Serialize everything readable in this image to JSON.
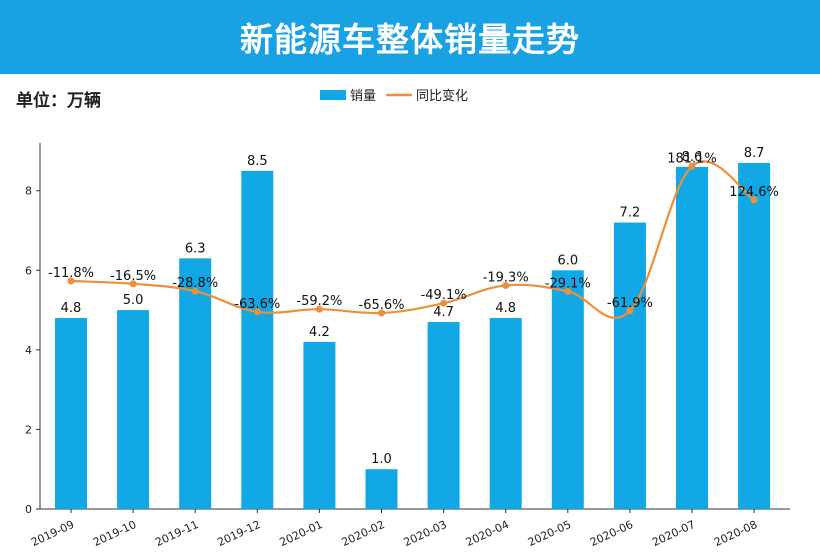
{
  "banner": {
    "title": "新能源车整体销量走势"
  },
  "unit_label": "单位：万辆",
  "colors": {
    "banner": "#18a2e3",
    "bar": "#12a8e6",
    "line": "#ee8f3a"
  },
  "chart_data": {
    "type": "bar",
    "title": "新能源车整体销量走势",
    "xlabel": "",
    "ylabel": "",
    "ylim": [
      0,
      9.2
    ],
    "y_ticks": [
      0,
      2,
      4,
      6,
      8
    ],
    "legend_position": "top-center",
    "grid": false,
    "categories": [
      "2019-09",
      "2019-10",
      "2019-11",
      "2019-12",
      "2020-01",
      "2020-02",
      "2020-03",
      "2020-04",
      "2020-05",
      "2020-06",
      "2020-07",
      "2020-08"
    ],
    "series": [
      {
        "name": "销量",
        "type": "bar",
        "values": [
          4.8,
          5.0,
          6.3,
          8.5,
          4.2,
          1.0,
          4.7,
          4.8,
          6.0,
          7.2,
          8.6,
          8.7
        ],
        "labels": [
          "4.8",
          "5.0",
          "6.3",
          "8.5",
          "4.2",
          "1.0",
          "4.7",
          "4.8",
          "6.0",
          "7.2",
          "8.6",
          "8.7"
        ]
      },
      {
        "name": "同比变化",
        "type": "line",
        "values": [
          -11.8,
          -16.5,
          -28.8,
          -63.6,
          -59.2,
          -65.6,
          -49.1,
          -19.3,
          -29.1,
          -61.9,
          181.1,
          124.6
        ],
        "labels": [
          "-11.8%",
          "-16.5%",
          "-28.8%",
          "-63.6%",
          "-59.2%",
          "-65.6%",
          "-49.1%",
          "-19.3%",
          "-29.1%",
          "-61.9%",
          "181.1%",
          "124.6%"
        ]
      }
    ]
  }
}
